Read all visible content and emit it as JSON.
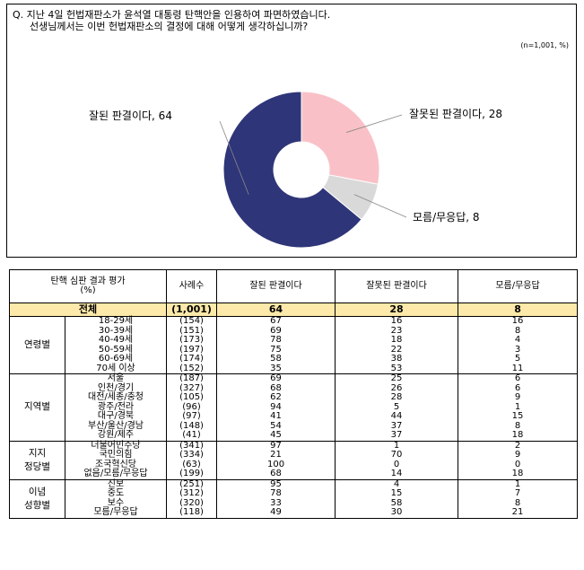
{
  "question": {
    "line1": "Q. 지난 4일 헌법재판소가 윤석열 대통령 탄핵안을 인용하여 파면하였습니다.",
    "line2": "선생님께서는 이번 헌법재판소의 결정에 대해 어떻게 생각하십니까?",
    "sample": "(n=1,001,  %)"
  },
  "chart_data": {
    "type": "pie",
    "donut": true,
    "slices": [
      {
        "label": "잘된 판결이다, 64",
        "name": "잘된 판결이다",
        "value": 64,
        "color": "#2e3578"
      },
      {
        "label": "잘못된 판결이다, 28",
        "name": "잘못된 판결이다",
        "value": 28,
        "color": "#f9c1c7"
      },
      {
        "label": "모름/무응답, 8",
        "name": "모름/무응답",
        "value": 8,
        "color": "#d9d9d9"
      }
    ]
  },
  "table": {
    "header": {
      "title": "탄핵 심판 결과 평가",
      "unit": "(%)",
      "cols": [
        "사례수",
        "잘된 판결이다",
        "잘못된 판결이다",
        "모름/무응답"
      ]
    },
    "total": {
      "label": "전체",
      "n": "(1,001)",
      "values": [
        "64",
        "28",
        "8"
      ]
    },
    "groups": [
      {
        "name": "연령별",
        "rows": [
          {
            "label": "18-29세",
            "n": "(154)",
            "values": [
              "67",
              "16",
              "16"
            ]
          },
          {
            "label": "30-39세",
            "n": "(151)",
            "values": [
              "69",
              "23",
              "8"
            ]
          },
          {
            "label": "40-49세",
            "n": "(173)",
            "values": [
              "78",
              "18",
              "4"
            ]
          },
          {
            "label": "50-59세",
            "n": "(197)",
            "values": [
              "75",
              "22",
              "3"
            ]
          },
          {
            "label": "60-69세",
            "n": "(174)",
            "values": [
              "58",
              "38",
              "5"
            ]
          },
          {
            "label": "70세 이상",
            "n": "(152)",
            "values": [
              "35",
              "53",
              "11"
            ]
          }
        ]
      },
      {
        "name": "지역별",
        "rows": [
          {
            "label": "서울",
            "n": "(187)",
            "values": [
              "69",
              "25",
              "6"
            ]
          },
          {
            "label": "인천/경기",
            "n": "(327)",
            "values": [
              "68",
              "26",
              "6"
            ]
          },
          {
            "label": "대전/세종/충청",
            "n": "(105)",
            "values": [
              "62",
              "28",
              "9"
            ]
          },
          {
            "label": "광주/전라",
            "n": "(96)",
            "values": [
              "94",
              "5",
              "1"
            ]
          },
          {
            "label": "대구/경북",
            "n": "(97)",
            "values": [
              "41",
              "44",
              "15"
            ]
          },
          {
            "label": "부산/울산/경남",
            "n": "(148)",
            "values": [
              "54",
              "37",
              "8"
            ]
          },
          {
            "label": "강원/제주",
            "n": "(41)",
            "values": [
              "45",
              "37",
              "18"
            ]
          }
        ]
      },
      {
        "name": "지지\n정당별",
        "rows": [
          {
            "label": "더불어민주당",
            "n": "(341)",
            "values": [
              "97",
              "1",
              "2"
            ]
          },
          {
            "label": "국민의힘",
            "n": "(334)",
            "values": [
              "21",
              "70",
              "9"
            ]
          },
          {
            "label": "조국혁신당",
            "n": "(63)",
            "values": [
              "100",
              "0",
              "0"
            ]
          },
          {
            "label": "없음/모름/무응답",
            "n": "(199)",
            "values": [
              "68",
              "14",
              "18"
            ]
          }
        ]
      },
      {
        "name": "이념\n성향별",
        "rows": [
          {
            "label": "진보",
            "n": "(251)",
            "values": [
              "95",
              "4",
              "1"
            ]
          },
          {
            "label": "중도",
            "n": "(312)",
            "values": [
              "78",
              "15",
              "7"
            ]
          },
          {
            "label": "보수",
            "n": "(320)",
            "values": [
              "33",
              "58",
              "8"
            ]
          },
          {
            "label": "모름/무응답",
            "n": "(118)",
            "values": [
              "49",
              "30",
              "21"
            ]
          }
        ]
      }
    ]
  }
}
